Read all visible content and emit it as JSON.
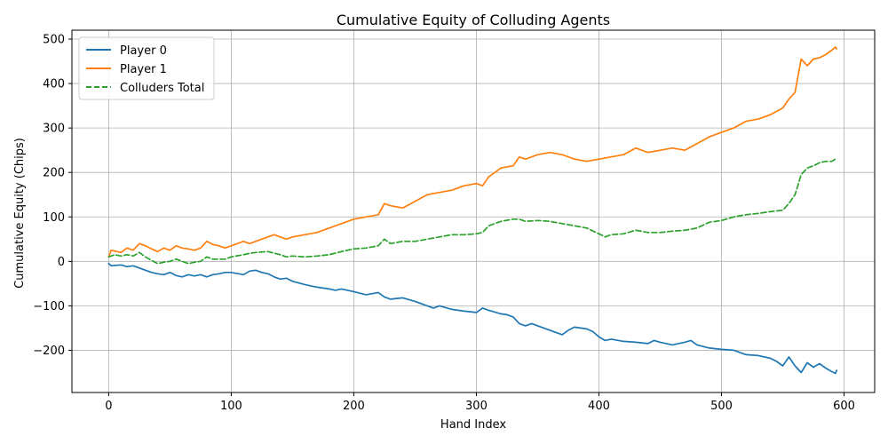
{
  "chart_data": {
    "type": "line",
    "title": "Cumulative Equity of Colluding Agents",
    "xlabel": "Hand Index",
    "ylabel": "Cumulative Equity (Chips)",
    "xlim": [
      -30,
      625
    ],
    "ylim": [
      -295,
      520
    ],
    "xticks": [
      0,
      100,
      200,
      300,
      400,
      500,
      600
    ],
    "yticks": [
      -200,
      -100,
      0,
      100,
      200,
      300,
      400,
      500
    ],
    "grid": true,
    "legend_position": "top-left",
    "series": [
      {
        "name": "Player 0",
        "color": "#1f77b4",
        "dash": "solid",
        "x": [
          0,
          2,
          10,
          15,
          20,
          25,
          30,
          35,
          40,
          45,
          50,
          55,
          60,
          65,
          70,
          75,
          80,
          85,
          90,
          95,
          100,
          110,
          115,
          120,
          125,
          130,
          135,
          140,
          145,
          150,
          160,
          170,
          180,
          185,
          190,
          195,
          200,
          210,
          220,
          225,
          230,
          240,
          250,
          260,
          265,
          270,
          280,
          290,
          300,
          305,
          310,
          320,
          325,
          330,
          335,
          340,
          345,
          350,
          360,
          365,
          370,
          375,
          380,
          385,
          390,
          395,
          400,
          405,
          410,
          420,
          430,
          440,
          445,
          450,
          460,
          470,
          475,
          480,
          490,
          500,
          510,
          520,
          530,
          540,
          545,
          550,
          555,
          560,
          565,
          570,
          575,
          580,
          585,
          590,
          593,
          594
        ],
        "y": [
          -5,
          -10,
          -8,
          -12,
          -10,
          -15,
          -20,
          -25,
          -28,
          -30,
          -25,
          -32,
          -35,
          -30,
          -33,
          -30,
          -35,
          -30,
          -28,
          -25,
          -25,
          -30,
          -22,
          -20,
          -25,
          -28,
          -35,
          -40,
          -38,
          -45,
          -52,
          -58,
          -62,
          -65,
          -62,
          -65,
          -68,
          -75,
          -70,
          -80,
          -85,
          -82,
          -90,
          -100,
          -105,
          -100,
          -108,
          -112,
          -115,
          -105,
          -110,
          -118,
          -120,
          -125,
          -140,
          -145,
          -140,
          -145,
          -155,
          -160,
          -165,
          -155,
          -148,
          -150,
          -152,
          -158,
          -170,
          -178,
          -175,
          -180,
          -182,
          -185,
          -178,
          -182,
          -188,
          -182,
          -178,
          -188,
          -195,
          -198,
          -200,
          -210,
          -212,
          -218,
          -225,
          -235,
          -215,
          -235,
          -250,
          -228,
          -238,
          -230,
          -240,
          -248,
          -252,
          -245
        ]
      },
      {
        "name": "Player 1",
        "color": "#ff7f0e",
        "dash": "solid",
        "x": [
          0,
          2,
          10,
          15,
          20,
          25,
          30,
          35,
          40,
          45,
          50,
          55,
          60,
          65,
          70,
          75,
          80,
          85,
          90,
          95,
          100,
          110,
          115,
          120,
          125,
          130,
          135,
          140,
          145,
          150,
          160,
          170,
          180,
          190,
          200,
          210,
          220,
          225,
          230,
          240,
          250,
          260,
          270,
          280,
          290,
          300,
          305,
          310,
          320,
          330,
          335,
          340,
          350,
          360,
          370,
          380,
          390,
          400,
          410,
          420,
          430,
          440,
          450,
          460,
          470,
          480,
          490,
          500,
          510,
          520,
          530,
          540,
          550,
          555,
          560,
          565,
          570,
          575,
          580,
          585,
          590,
          593,
          594
        ],
        "y": [
          10,
          25,
          20,
          30,
          25,
          40,
          35,
          28,
          22,
          30,
          25,
          35,
          30,
          28,
          25,
          30,
          45,
          38,
          35,
          30,
          35,
          45,
          40,
          45,
          50,
          55,
          60,
          55,
          50,
          55,
          60,
          65,
          75,
          85,
          95,
          100,
          105,
          130,
          125,
          120,
          135,
          150,
          155,
          160,
          170,
          175,
          170,
          190,
          210,
          215,
          235,
          230,
          240,
          245,
          240,
          230,
          225,
          230,
          235,
          240,
          255,
          245,
          250,
          255,
          250,
          265,
          280,
          290,
          300,
          315,
          320,
          330,
          345,
          365,
          380,
          455,
          440,
          455,
          458,
          465,
          475,
          482,
          478
        ]
      },
      {
        "name": "Colluders Total",
        "color": "#2ca02c",
        "dash": "dashed",
        "x": [
          0,
          5,
          10,
          15,
          20,
          25,
          30,
          35,
          40,
          45,
          50,
          55,
          60,
          65,
          70,
          75,
          80,
          85,
          90,
          95,
          100,
          110,
          115,
          120,
          130,
          140,
          145,
          150,
          160,
          170,
          180,
          190,
          200,
          210,
          220,
          225,
          230,
          240,
          250,
          260,
          270,
          280,
          290,
          300,
          305,
          310,
          320,
          330,
          335,
          340,
          350,
          360,
          370,
          380,
          390,
          400,
          405,
          410,
          420,
          430,
          440,
          450,
          460,
          470,
          480,
          490,
          500,
          510,
          520,
          530,
          540,
          550,
          555,
          560,
          565,
          570,
          575,
          580,
          585,
          590,
          594
        ],
        "y": [
          10,
          15,
          12,
          15,
          12,
          20,
          10,
          2,
          -5,
          -2,
          0,
          5,
          0,
          -5,
          -2,
          0,
          10,
          5,
          5,
          5,
          10,
          15,
          18,
          20,
          22,
          15,
          10,
          12,
          10,
          12,
          15,
          22,
          28,
          30,
          35,
          50,
          40,
          45,
          45,
          50,
          55,
          60,
          60,
          62,
          65,
          80,
          90,
          95,
          95,
          90,
          92,
          90,
          85,
          80,
          75,
          62,
          55,
          60,
          62,
          70,
          65,
          65,
          68,
          70,
          75,
          88,
          92,
          100,
          105,
          108,
          112,
          115,
          130,
          150,
          195,
          210,
          215,
          222,
          225,
          225,
          232
        ]
      }
    ]
  }
}
